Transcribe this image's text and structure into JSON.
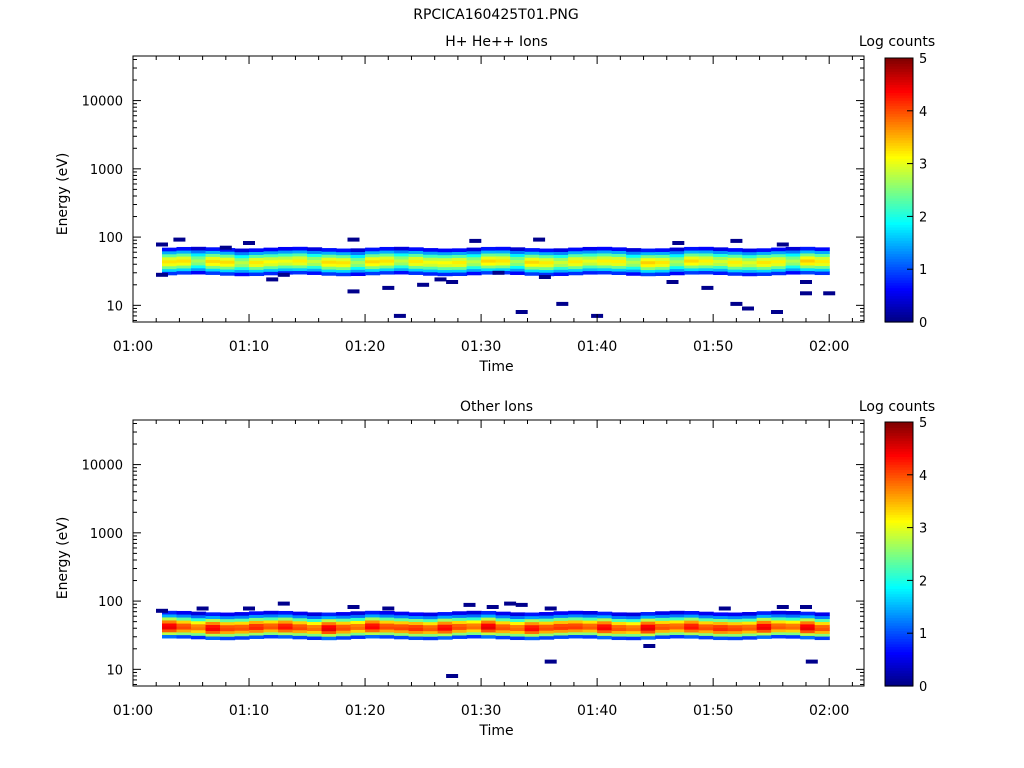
{
  "figure_title": "RPCICA160425T01.PNG",
  "colorscale": {
    "stops": [
      "#00007f",
      "#0000ff",
      "#007fff",
      "#00ffff",
      "#7fff7f",
      "#ffff00",
      "#ff7f00",
      "#ff0000",
      "#7f0000"
    ]
  },
  "chart_data": [
    {
      "type": "heatmap",
      "title": "H+ He++ Ions",
      "xlabel": "Time",
      "ylabel": "Energy (eV)",
      "xlim": [
        "01:00",
        "02:03"
      ],
      "ylim": [
        5.7,
        45000
      ],
      "yscale": "log",
      "xticks": [
        "01:00",
        "01:10",
        "01:20",
        "01:30",
        "01:40",
        "01:50",
        "02:00"
      ],
      "yticks": [
        10,
        100,
        1000,
        10000
      ],
      "colorbar": {
        "label": "Log counts",
        "range": [
          0,
          5
        ],
        "ticks": [
          0,
          1,
          2,
          3,
          4,
          5
        ]
      },
      "time_range": [
        "01:02:30",
        "02:00:00"
      ],
      "band_energy_range_eV": [
        28,
        70
      ],
      "band_log_counts_profile": [
        {
          "energy_eV": 30,
          "log_counts": 0.8
        },
        {
          "energy_eV": 33,
          "log_counts": 1.6
        },
        {
          "energy_eV": 36,
          "log_counts": 2.3
        },
        {
          "energy_eV": 40,
          "log_counts": 2.9
        },
        {
          "energy_eV": 44,
          "log_counts": 3.1
        },
        {
          "energy_eV": 49,
          "log_counts": 2.8
        },
        {
          "energy_eV": 54,
          "log_counts": 2.2
        },
        {
          "energy_eV": 60,
          "log_counts": 1.4
        },
        {
          "energy_eV": 66,
          "log_counts": 0.6
        }
      ],
      "isolated_points": [
        {
          "time": "01:02:30",
          "energy_eV": 78
        },
        {
          "time": "01:04:00",
          "energy_eV": 92
        },
        {
          "time": "01:02:30",
          "energy_eV": 28
        },
        {
          "time": "01:08:00",
          "energy_eV": 70
        },
        {
          "time": "01:10:00",
          "energy_eV": 82
        },
        {
          "time": "01:12:00",
          "energy_eV": 24
        },
        {
          "time": "01:13:00",
          "energy_eV": 28
        },
        {
          "time": "01:19:00",
          "energy_eV": 92
        },
        {
          "time": "01:19:00",
          "energy_eV": 16
        },
        {
          "time": "01:22:00",
          "energy_eV": 18
        },
        {
          "time": "01:23:00",
          "energy_eV": 7
        },
        {
          "time": "01:25:00",
          "energy_eV": 20
        },
        {
          "time": "01:26:30",
          "energy_eV": 24
        },
        {
          "time": "01:27:30",
          "energy_eV": 22
        },
        {
          "time": "01:29:30",
          "energy_eV": 88
        },
        {
          "time": "01:31:30",
          "energy_eV": 30
        },
        {
          "time": "01:33:30",
          "energy_eV": 8
        },
        {
          "time": "01:35:00",
          "energy_eV": 92
        },
        {
          "time": "01:35:30",
          "energy_eV": 26
        },
        {
          "time": "01:37:00",
          "energy_eV": 10.5
        },
        {
          "time": "01:40:00",
          "energy_eV": 7
        },
        {
          "time": "01:46:30",
          "energy_eV": 22
        },
        {
          "time": "01:47:00",
          "energy_eV": 82
        },
        {
          "time": "01:49:30",
          "energy_eV": 18
        },
        {
          "time": "01:52:00",
          "energy_eV": 88
        },
        {
          "time": "01:52:00",
          "energy_eV": 10.5
        },
        {
          "time": "01:53:00",
          "energy_eV": 9
        },
        {
          "time": "01:55:30",
          "energy_eV": 8
        },
        {
          "time": "01:56:00",
          "energy_eV": 78
        },
        {
          "time": "01:58:00",
          "energy_eV": 22
        },
        {
          "time": "01:58:00",
          "energy_eV": 15
        },
        {
          "time": "02:00:00",
          "energy_eV": 15
        }
      ]
    },
    {
      "type": "heatmap",
      "title": "Other Ions",
      "xlabel": "Time",
      "ylabel": "Energy (eV)",
      "xlim": [
        "01:00",
        "02:03"
      ],
      "ylim": [
        5.7,
        45000
      ],
      "yscale": "log",
      "xticks": [
        "01:00",
        "01:10",
        "01:20",
        "01:30",
        "01:40",
        "01:50",
        "02:00"
      ],
      "yticks": [
        10,
        100,
        1000,
        10000
      ],
      "colorbar": {
        "label": "Log counts",
        "range": [
          0,
          5
        ],
        "ticks": [
          0,
          1,
          2,
          3,
          4,
          5
        ]
      },
      "time_range": [
        "01:02:30",
        "02:00:00"
      ],
      "band_energy_range_eV": [
        28,
        70
      ],
      "band_log_counts_profile": [
        {
          "energy_eV": 30,
          "log_counts": 1.0
        },
        {
          "energy_eV": 33,
          "log_counts": 2.6
        },
        {
          "energy_eV": 36,
          "log_counts": 3.6
        },
        {
          "energy_eV": 40,
          "log_counts": 4.1
        },
        {
          "energy_eV": 44,
          "log_counts": 4.0
        },
        {
          "energy_eV": 49,
          "log_counts": 3.4
        },
        {
          "energy_eV": 54,
          "log_counts": 2.4
        },
        {
          "energy_eV": 60,
          "log_counts": 1.3
        },
        {
          "energy_eV": 66,
          "log_counts": 0.6
        }
      ],
      "isolated_points": [
        {
          "time": "01:02:30",
          "energy_eV": 72
        },
        {
          "time": "01:06:00",
          "energy_eV": 78
        },
        {
          "time": "01:10:00",
          "energy_eV": 78
        },
        {
          "time": "01:13:00",
          "energy_eV": 92
        },
        {
          "time": "01:19:00",
          "energy_eV": 82
        },
        {
          "time": "01:22:00",
          "energy_eV": 78
        },
        {
          "time": "01:27:30",
          "energy_eV": 8
        },
        {
          "time": "01:29:00",
          "energy_eV": 88
        },
        {
          "time": "01:31:00",
          "energy_eV": 82
        },
        {
          "time": "01:32:30",
          "energy_eV": 92
        },
        {
          "time": "01:33:30",
          "energy_eV": 88
        },
        {
          "time": "01:36:00",
          "energy_eV": 13
        },
        {
          "time": "01:36:00",
          "energy_eV": 78
        },
        {
          "time": "01:44:30",
          "energy_eV": 22
        },
        {
          "time": "01:51:00",
          "energy_eV": 78
        },
        {
          "time": "01:56:00",
          "energy_eV": 82
        },
        {
          "time": "01:58:00",
          "energy_eV": 82
        },
        {
          "time": "01:58:30",
          "energy_eV": 13
        }
      ]
    }
  ]
}
